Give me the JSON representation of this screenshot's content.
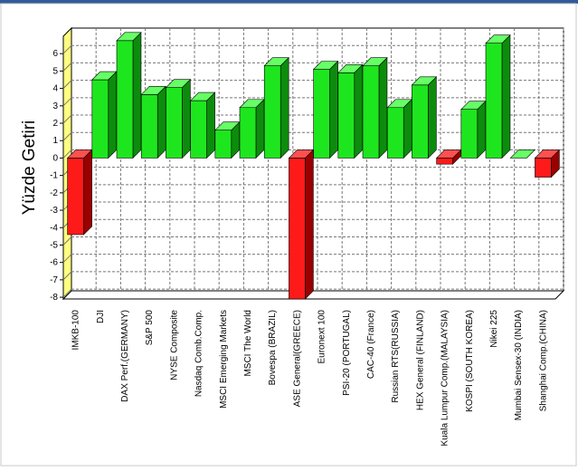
{
  "chart_data": {
    "type": "bar3d",
    "ylabel": "Yüzde Getiri",
    "categories": [
      "IMKB-100",
      "DJI",
      "DAX Perf.(GERMANY)",
      "S&P 500",
      "NYSE Composite",
      "Nasdaq Comb.Comp.",
      "MSCI Emerging Markets",
      "MSCI The World",
      "Bovespa (BRAZIL)",
      "ASE General(GREECE)",
      "Euronext 100",
      "PSI-20 (PORTUGAL)",
      "CAC-40 (France)",
      "Russian RTS(RUSSIA)",
      "HEX General (FINLAND)",
      "Kuala Lumpur Comp.(MALAYSIA)",
      "KOSPI (SOUTH KOREA)",
      "Nikei 225",
      "Mumbai Sensex-30 (INDIA)",
      "Shanghai Comp.(CHINA)"
    ],
    "values": [
      -4.4,
      4.5,
      6.75,
      3.65,
      4.05,
      3.3,
      1.6,
      2.9,
      5.3,
      -8.1,
      5.1,
      4.9,
      5.3,
      2.9,
      4.2,
      -0.35,
      2.8,
      6.6,
      0,
      -1.1
    ],
    "positive_color": "#1ee61e",
    "negative_color": "#ff1a1a",
    "ylim": [
      -8.1,
      7
    ],
    "yticks": [
      -8,
      -7,
      -6,
      -5,
      -4,
      -3,
      -2,
      -1,
      0,
      1,
      2,
      3,
      4,
      5,
      6
    ],
    "grid": true
  }
}
